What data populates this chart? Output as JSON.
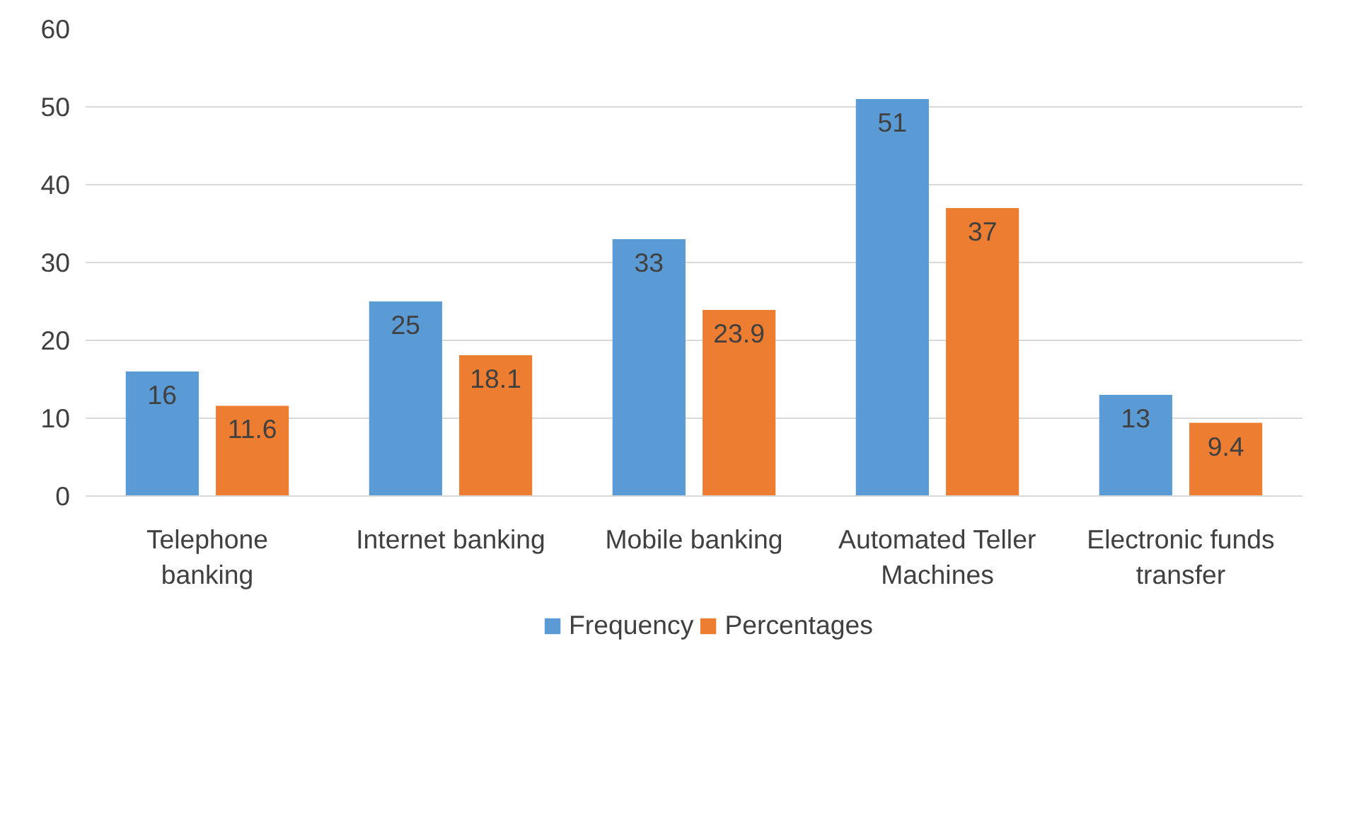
{
  "chart_data": {
    "type": "bar",
    "categories": [
      "Telephone banking",
      "Internet banking",
      "Mobile banking",
      "Automated Teller Machines",
      "Electronic funds transfer"
    ],
    "series": [
      {
        "name": "Frequency",
        "color": "#5b9bd5",
        "values": [
          16,
          25,
          33,
          51,
          13
        ]
      },
      {
        "name": "Percentages",
        "color": "#ed7d31",
        "values": [
          11.6,
          18.1,
          23.9,
          37,
          9.4
        ]
      }
    ],
    "ylim": [
      0,
      60
    ],
    "yticks": [
      0,
      10,
      20,
      30,
      40,
      50,
      60
    ],
    "grid": "y",
    "legend": "bottom",
    "data_labels": true
  }
}
